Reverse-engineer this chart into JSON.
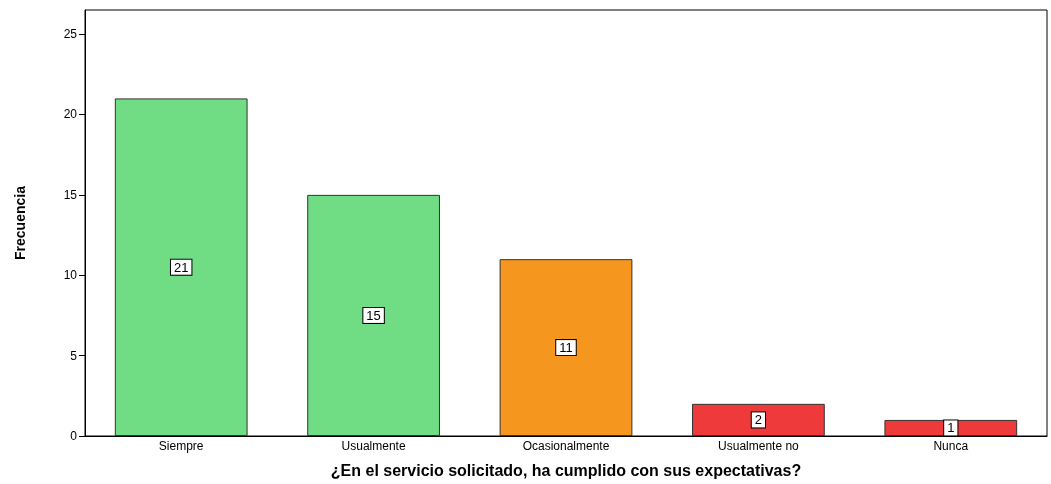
{
  "chart_data": {
    "type": "bar",
    "xlabel": "¿En el servicio solicitado, ha cumplido con sus expectativas?",
    "ylabel": "Frecuencia",
    "categories": [
      "Siempre",
      "Usualmente",
      "Ocasionalmente",
      "Usualmente no",
      "Nunca"
    ],
    "values": [
      21,
      15,
      11,
      2,
      1
    ],
    "colors": [
      "#70dc84",
      "#70dc84",
      "#f5961f",
      "#ee3a3a",
      "#ee3a3a"
    ],
    "ylim": [
      0,
      26.5
    ],
    "yticks": [
      0,
      5,
      10,
      15,
      20,
      25
    ],
    "grid": false,
    "data_labels": true
  }
}
